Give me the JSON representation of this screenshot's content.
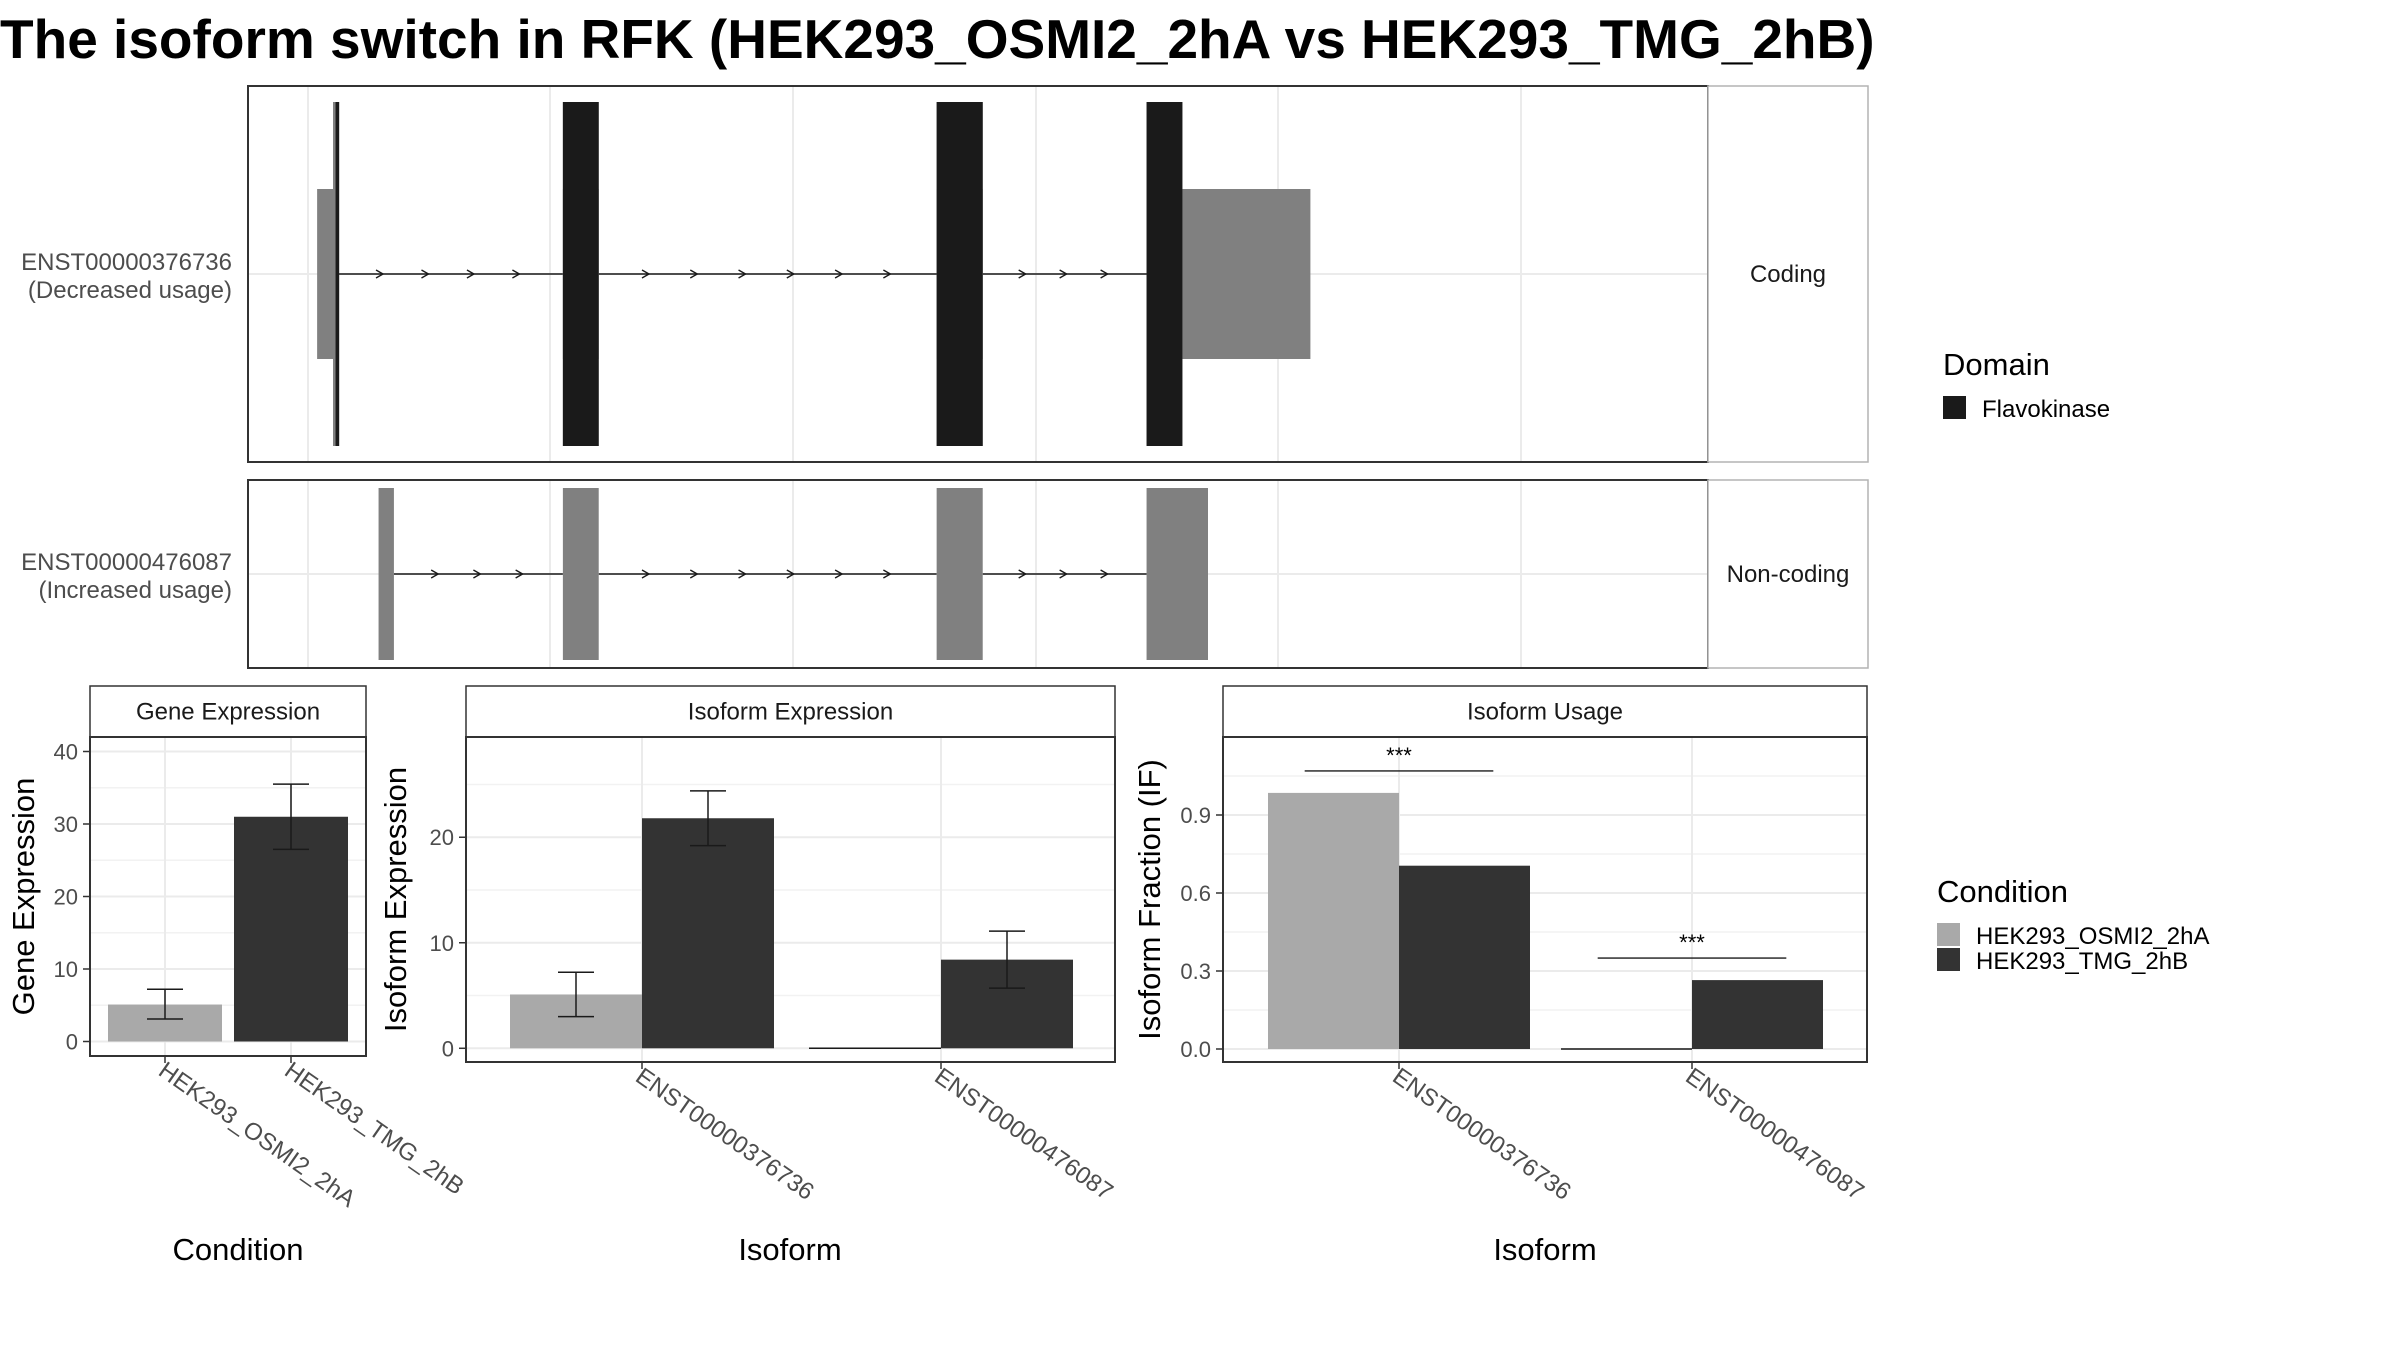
{
  "title": "The isoform switch in RFK (HEK293_OSMI2_2hA vs HEK293_TMG_2hB)",
  "colors": {
    "domain": "#1a1a1a",
    "exon": "#808080",
    "condition_a": "#a9a9a9",
    "condition_b": "#333333",
    "grid": "#ebebeb",
    "frame": "#333333"
  },
  "isoforms": [
    {
      "id": "ENST00000376736",
      "usage_label": "(Decreased usage)",
      "strip_label": "Coding",
      "exons": [
        [
          1,
          4.6
        ],
        [
          49,
          56
        ],
        [
          122,
          131
        ],
        [
          163,
          195
        ]
      ],
      "cds": [
        [
          4.1,
          5.3
        ],
        [
          49,
          56
        ],
        [
          122,
          131
        ],
        [
          163,
          170
        ]
      ],
      "domain_segments": [
        [
          4.6,
          5.3
        ],
        [
          49,
          56
        ],
        [
          122,
          131
        ],
        [
          163,
          170
        ]
      ]
    },
    {
      "id": "ENST00000476087",
      "usage_label": "(Increased usage)",
      "strip_label": "Non-coding",
      "exons": [
        [
          13,
          16
        ],
        [
          49,
          56
        ],
        [
          122,
          131
        ],
        [
          163,
          175
        ]
      ],
      "cds": [],
      "domain_segments": []
    }
  ],
  "structure_axis": {
    "xlim": [
      0,
      200
    ]
  },
  "domain_legend": {
    "title": "Domain",
    "items": [
      "Flavokinase"
    ]
  },
  "condition_legend": {
    "title": "Condition",
    "items": [
      "HEK293_OSMI2_2hA",
      "HEK293_TMG_2hB"
    ]
  },
  "chart_data": [
    {
      "type": "bar",
      "title": "Gene Expression",
      "xlabel": "Condition",
      "ylabel": "Gene Expression",
      "categories": [
        "HEK293_OSMI2_2hA",
        "HEK293_TMG_2hB"
      ],
      "values": [
        5.1,
        31.0
      ],
      "errors": [
        [
          3.1,
          7.2
        ],
        [
          26.5,
          35.5
        ]
      ],
      "ylim": [
        -2,
        42
      ],
      "yticks": [
        0,
        10,
        20,
        30,
        40
      ]
    },
    {
      "type": "bar",
      "title": "Isoform Expression",
      "xlabel": "Isoform",
      "ylabel": "Isoform Expression",
      "categories": [
        "ENST00000376736",
        "ENST00000476087"
      ],
      "series": [
        {
          "name": "HEK293_OSMI2_2hA",
          "values": [
            5.1,
            0.0
          ],
          "errors": [
            [
              3.0,
              7.2
            ],
            [
              0.0,
              0.0
            ]
          ]
        },
        {
          "name": "HEK293_TMG_2hB",
          "values": [
            21.8,
            8.4
          ],
          "errors": [
            [
              19.2,
              24.4
            ],
            [
              5.7,
              11.1
            ]
          ]
        }
      ],
      "ylim": [
        -1.3,
        29.5
      ],
      "yticks": [
        0,
        10,
        20
      ]
    },
    {
      "type": "bar",
      "title": "Isoform Usage",
      "xlabel": "Isoform",
      "ylabel": "Isoform Fraction (IF)",
      "categories": [
        "ENST00000376736",
        "ENST00000476087"
      ],
      "series": [
        {
          "name": "HEK293_OSMI2_2hA",
          "values": [
            0.985,
            0.0
          ]
        },
        {
          "name": "HEK293_TMG_2hB",
          "values": [
            0.705,
            0.265
          ]
        }
      ],
      "significance": [
        "***",
        "***"
      ],
      "ylim": [
        -0.05,
        1.2
      ],
      "yticks": [
        0.0,
        0.3,
        0.6,
        0.9
      ],
      "ytick_labels": [
        "0.0",
        "0.3",
        "0.6",
        "0.9"
      ]
    }
  ]
}
